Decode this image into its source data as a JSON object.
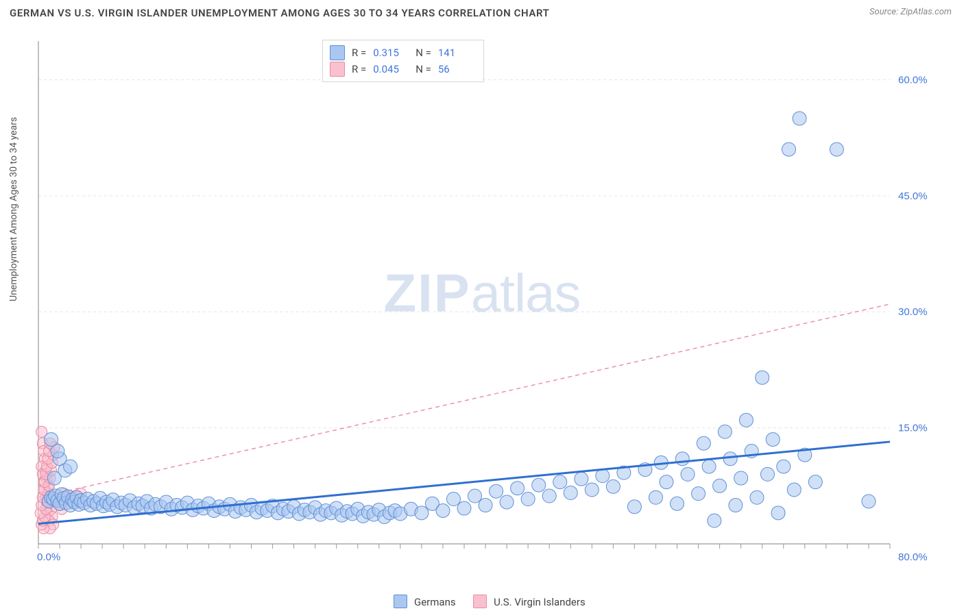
{
  "title": "GERMAN VS U.S. VIRGIN ISLANDER UNEMPLOYMENT AMONG AGES 30 TO 34 YEARS CORRELATION CHART",
  "source": "Source: ZipAtlas.com",
  "watermark": "ZIPatlas",
  "y_axis_label": "Unemployment Among Ages 30 to 34 years",
  "chart": {
    "type": "scatter",
    "xlim": [
      0,
      80
    ],
    "ylim": [
      0,
      65
    ],
    "x_ticks_label_left": "0.0%",
    "x_ticks_label_right": "80.0%",
    "y_right_ticks": [
      {
        "v": 15,
        "label": "15.0%"
      },
      {
        "v": 30,
        "label": "30.0%"
      },
      {
        "v": 45,
        "label": "45.0%"
      },
      {
        "v": 60,
        "label": "60.0%"
      }
    ],
    "x_minor_tick_step": 2,
    "background_color": "#ffffff",
    "grid_color": "#e6e6e6",
    "grid_dash": "4,4",
    "axis_color": "#9a9a9a",
    "tick_label_color": "#3f76d9",
    "tick_label_fontsize": 15,
    "series": [
      {
        "name": "Germans",
        "marker_fill": "#a9c7f0",
        "marker_stroke": "#5f8fd6",
        "marker_fill_opacity": 0.55,
        "marker_radius": 10,
        "trend": {
          "color": "#2f6fd0",
          "width": 3,
          "dash": "",
          "y0": 2.6,
          "y1": 13.2
        },
        "points": [
          [
            1.0,
            5.5
          ],
          [
            1.2,
            6.0
          ],
          [
            1.4,
            5.8
          ],
          [
            1.6,
            6.2
          ],
          [
            1.8,
            5.6
          ],
          [
            2.0,
            5.2
          ],
          [
            2.2,
            6.4
          ],
          [
            2.4,
            5.9
          ],
          [
            2.6,
            5.3
          ],
          [
            2.8,
            6.1
          ],
          [
            3.0,
            5.0
          ],
          [
            3.2,
            5.7
          ],
          [
            3.4,
            5.4
          ],
          [
            3.6,
            6.0
          ],
          [
            3.8,
            5.1
          ],
          [
            4.0,
            5.6
          ],
          [
            4.3,
            5.3
          ],
          [
            4.6,
            5.8
          ],
          [
            4.9,
            5.0
          ],
          [
            5.2,
            5.5
          ],
          [
            5.5,
            5.2
          ],
          [
            5.8,
            5.9
          ],
          [
            6.1,
            4.9
          ],
          [
            6.4,
            5.4
          ],
          [
            6.7,
            5.1
          ],
          [
            7.0,
            5.7
          ],
          [
            7.4,
            4.8
          ],
          [
            7.8,
            5.3
          ],
          [
            8.2,
            5.0
          ],
          [
            8.6,
            5.6
          ],
          [
            9.0,
            4.7
          ],
          [
            9.4,
            5.2
          ],
          [
            9.8,
            4.9
          ],
          [
            10.2,
            5.5
          ],
          [
            10.6,
            4.6
          ],
          [
            11.0,
            5.1
          ],
          [
            11.5,
            4.8
          ],
          [
            12.0,
            5.4
          ],
          [
            12.5,
            4.5
          ],
          [
            13.0,
            5.0
          ],
          [
            13.5,
            4.7
          ],
          [
            14.0,
            5.3
          ],
          [
            14.5,
            4.4
          ],
          [
            15.0,
            4.9
          ],
          [
            15.5,
            4.6
          ],
          [
            16.0,
            5.2
          ],
          [
            16.5,
            4.3
          ],
          [
            17.0,
            4.8
          ],
          [
            17.5,
            4.5
          ],
          [
            18.0,
            5.1
          ],
          [
            18.5,
            4.2
          ],
          [
            19.0,
            4.7
          ],
          [
            19.5,
            4.4
          ],
          [
            20.0,
            5.0
          ],
          [
            20.5,
            4.1
          ],
          [
            21.0,
            4.6
          ],
          [
            21.5,
            4.3
          ],
          [
            22.0,
            4.9
          ],
          [
            22.5,
            4.0
          ],
          [
            23.0,
            4.5
          ],
          [
            23.5,
            4.2
          ],
          [
            24.0,
            4.8
          ],
          [
            24.5,
            3.9
          ],
          [
            25.0,
            4.4
          ],
          [
            25.5,
            4.1
          ],
          [
            26.0,
            4.7
          ],
          [
            26.5,
            3.8
          ],
          [
            27.0,
            4.3
          ],
          [
            27.5,
            4.0
          ],
          [
            28.0,
            4.6
          ],
          [
            28.5,
            3.7
          ],
          [
            29.0,
            4.2
          ],
          [
            29.5,
            3.9
          ],
          [
            30.0,
            4.5
          ],
          [
            30.5,
            3.6
          ],
          [
            31.0,
            4.1
          ],
          [
            31.5,
            3.8
          ],
          [
            32.0,
            4.4
          ],
          [
            32.5,
            3.5
          ],
          [
            33.0,
            4.0
          ],
          [
            33.5,
            4.3
          ],
          [
            34.0,
            3.9
          ],
          [
            35.0,
            4.5
          ],
          [
            36.0,
            4.0
          ],
          [
            37.0,
            5.2
          ],
          [
            38.0,
            4.3
          ],
          [
            39.0,
            5.8
          ],
          [
            40.0,
            4.6
          ],
          [
            41.0,
            6.2
          ],
          [
            42.0,
            5.0
          ],
          [
            43.0,
            6.8
          ],
          [
            44.0,
            5.4
          ],
          [
            45.0,
            7.2
          ],
          [
            46.0,
            5.8
          ],
          [
            47.0,
            7.6
          ],
          [
            48.0,
            6.2
          ],
          [
            49.0,
            8.0
          ],
          [
            50.0,
            6.6
          ],
          [
            51.0,
            8.4
          ],
          [
            52.0,
            7.0
          ],
          [
            53.0,
            8.8
          ],
          [
            54.0,
            7.4
          ],
          [
            55.0,
            9.2
          ],
          [
            56.0,
            4.8
          ],
          [
            57.0,
            9.6
          ],
          [
            58.0,
            6.0
          ],
          [
            58.5,
            10.5
          ],
          [
            59.0,
            8.0
          ],
          [
            60.0,
            5.2
          ],
          [
            60.5,
            11.0
          ],
          [
            61.0,
            9.0
          ],
          [
            62.0,
            6.5
          ],
          [
            62.5,
            13.0
          ],
          [
            63.0,
            10.0
          ],
          [
            63.5,
            3.0
          ],
          [
            64.0,
            7.5
          ],
          [
            64.5,
            14.5
          ],
          [
            65.0,
            11.0
          ],
          [
            65.5,
            5.0
          ],
          [
            66.0,
            8.5
          ],
          [
            66.5,
            16.0
          ],
          [
            67.0,
            12.0
          ],
          [
            67.5,
            6.0
          ],
          [
            68.0,
            21.5
          ],
          [
            68.5,
            9.0
          ],
          [
            69.0,
            13.5
          ],
          [
            69.5,
            4.0
          ],
          [
            70.0,
            10.0
          ],
          [
            70.5,
            51.0
          ],
          [
            71.0,
            7.0
          ],
          [
            71.5,
            55.0
          ],
          [
            72.0,
            11.5
          ],
          [
            73.0,
            8.0
          ],
          [
            75.0,
            51.0
          ],
          [
            78.0,
            5.5
          ],
          [
            2.0,
            11.0
          ],
          [
            2.5,
            9.5
          ],
          [
            1.5,
            8.5
          ],
          [
            3.0,
            10.0
          ],
          [
            1.8,
            12.0
          ],
          [
            1.2,
            13.5
          ]
        ]
      },
      {
        "name": "U.S. Virgin Islanders",
        "marker_fill": "#f9c1cf",
        "marker_stroke": "#e98aa2",
        "marker_fill_opacity": 0.55,
        "marker_radius": 8,
        "trend": {
          "color": "#e98aa2",
          "width": 1.4,
          "dash": "6,5",
          "y0": 6.0,
          "y1": 31.0
        },
        "points": [
          [
            0.3,
            14.5
          ],
          [
            0.4,
            13.0
          ],
          [
            0.5,
            12.0
          ],
          [
            0.6,
            11.0
          ],
          [
            0.3,
            10.0
          ],
          [
            0.7,
            9.5
          ],
          [
            0.4,
            9.0
          ],
          [
            0.8,
            8.5
          ],
          [
            0.5,
            8.0
          ],
          [
            0.9,
            7.5
          ],
          [
            0.6,
            7.0
          ],
          [
            1.0,
            6.5
          ],
          [
            0.7,
            6.0
          ],
          [
            1.1,
            5.5
          ],
          [
            0.8,
            5.0
          ],
          [
            1.2,
            4.5
          ],
          [
            0.9,
            4.0
          ],
          [
            1.3,
            3.5
          ],
          [
            1.0,
            3.0
          ],
          [
            1.4,
            2.5
          ],
          [
            1.1,
            2.0
          ],
          [
            0.5,
            2.0
          ],
          [
            0.3,
            2.5
          ],
          [
            0.4,
            3.0
          ],
          [
            0.6,
            3.5
          ],
          [
            0.2,
            4.0
          ],
          [
            0.7,
            4.5
          ],
          [
            0.3,
            5.0
          ],
          [
            0.8,
            5.5
          ],
          [
            0.4,
            6.0
          ],
          [
            0.9,
            6.5
          ],
          [
            0.5,
            7.0
          ],
          [
            1.0,
            7.5
          ],
          [
            0.6,
            8.0
          ],
          [
            1.1,
            8.5
          ],
          [
            0.7,
            9.0
          ],
          [
            1.2,
            9.5
          ],
          [
            0.8,
            10.0
          ],
          [
            1.3,
            10.5
          ],
          [
            0.9,
            11.0
          ],
          [
            1.4,
            11.5
          ],
          [
            1.0,
            12.0
          ],
          [
            1.5,
            12.5
          ],
          [
            1.1,
            13.0
          ],
          [
            1.6,
            6.0
          ],
          [
            1.8,
            5.5
          ],
          [
            2.0,
            5.0
          ],
          [
            2.2,
            4.5
          ],
          [
            2.4,
            6.5
          ],
          [
            2.6,
            5.8
          ],
          [
            2.8,
            5.2
          ],
          [
            3.0,
            6.0
          ],
          [
            3.2,
            5.5
          ],
          [
            3.5,
            6.2
          ],
          [
            3.8,
            5.8
          ],
          [
            4.0,
            6.5
          ]
        ]
      }
    ],
    "stats": [
      {
        "r": "0.315",
        "n": "141",
        "swatch_fill": "#a9c7f0",
        "swatch_stroke": "#5f8fd6"
      },
      {
        "r": "0.045",
        "n": "56",
        "swatch_fill": "#f9c1cf",
        "swatch_stroke": "#e98aa2"
      }
    ],
    "legend_bottom": [
      {
        "label": "Germans",
        "fill": "#a9c7f0",
        "stroke": "#5f8fd6"
      },
      {
        "label": "U.S. Virgin Islanders",
        "fill": "#f9c1cf",
        "stroke": "#e98aa2"
      }
    ]
  }
}
